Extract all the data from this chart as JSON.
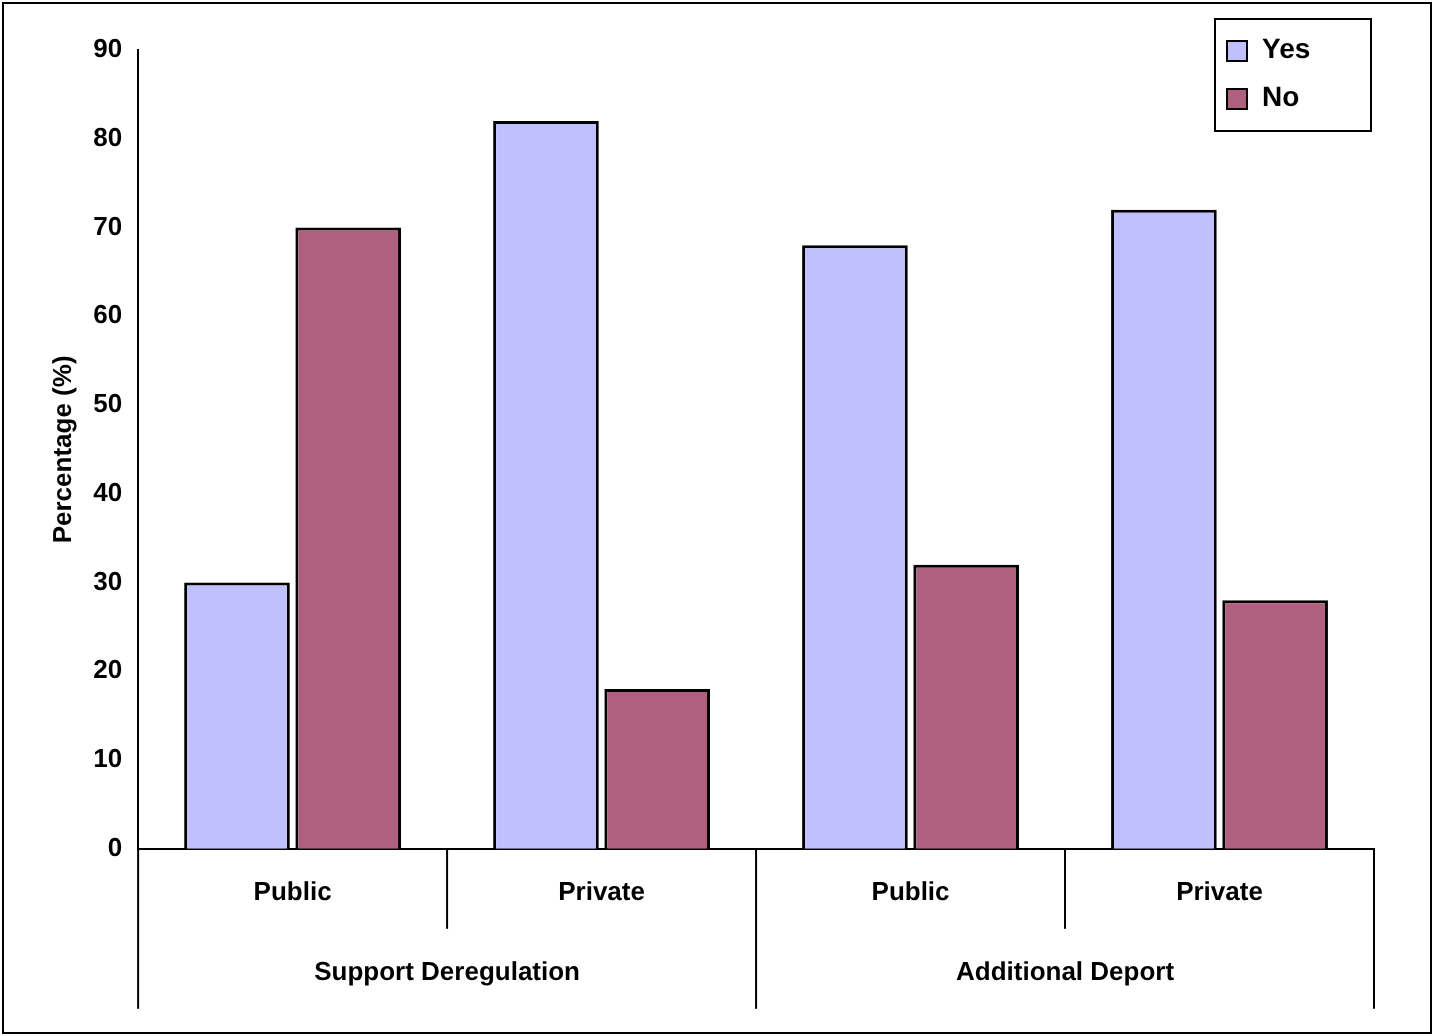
{
  "chart_data": {
    "type": "bar",
    "ylabel": "Percentage (%)",
    "categories": [
      "Public",
      "Private",
      "Public",
      "Private"
    ],
    "series": [
      {
        "name": "Yes",
        "color": "#c0c0ff",
        "values": [
          30,
          82,
          68,
          72
        ]
      },
      {
        "name": "No",
        "color": "#b0607f",
        "values": [
          70,
          18,
          32,
          28
        ]
      }
    ],
    "annotations": [
      "Support Deregulation",
      "Additional Deport"
    ],
    "ylim": [
      0,
      90
    ],
    "yticks": [
      0,
      10,
      20,
      30,
      40,
      50,
      60,
      70,
      80,
      90
    ],
    "grid": false,
    "legend": "top right"
  }
}
